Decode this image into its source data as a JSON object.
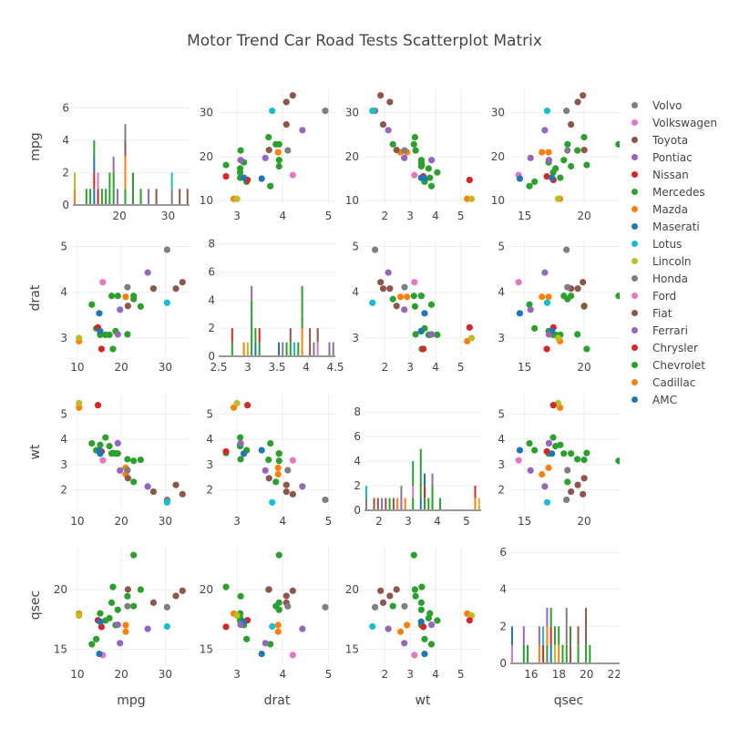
{
  "chart_data": {
    "type": "scatter",
    "title": "Motor Trend Car Road Tests Scatterplot Matrix",
    "variables": [
      "mpg",
      "drat",
      "wt",
      "qsec"
    ],
    "diagonal": "histogram (stacked by group)",
    "grid": true,
    "legend_placement": "right",
    "axes": {
      "mpg": {
        "range": [
          9,
          35.5
        ],
        "ticks": [
          10,
          20,
          30
        ],
        "tick_labels": [
          "10",
          "20",
          "30"
        ]
      },
      "drat": {
        "range": [
          2.6,
          5.15
        ],
        "ticks": [
          3,
          4,
          5
        ],
        "tick_labels": [
          "3",
          "4",
          "5"
        ]
      },
      "wt": {
        "range": [
          1.2,
          5.8
        ],
        "ticks": [
          2,
          3,
          4,
          5
        ],
        "tick_labels": [
          "2",
          "3",
          "4",
          "5"
        ]
      },
      "qsec": {
        "range": [
          13.8,
          23.6
        ],
        "ticks": [
          15,
          20
        ],
        "tick_labels": [
          "15",
          "20"
        ]
      }
    },
    "hist_axes": {
      "mpg": {
        "xrange": [
          10.4,
          34.4
        ],
        "xticks": [
          20,
          30
        ],
        "xtick_labels": [
          "20",
          "30"
        ],
        "yrange": [
          0,
          7.2
        ],
        "yticks": [
          0,
          2,
          4,
          6
        ],
        "ytick_labels": [
          "0",
          "2",
          "4",
          "6"
        ]
      },
      "drat": {
        "xrange": [
          2.5,
          4.5
        ],
        "xticks": [
          2.5,
          3,
          3.5,
          4,
          4.5
        ],
        "xtick_labels": [
          "2.5",
          "3",
          "3.5",
          "4",
          "4.5"
        ],
        "yrange": [
          0,
          8.3
        ],
        "yticks": [
          0,
          2,
          4,
          6,
          8
        ],
        "ytick_labels": [
          "0",
          "2",
          "4",
          "6",
          "8"
        ]
      },
      "wt": {
        "xrange": [
          1.5,
          5.5
        ],
        "xticks": [
          2,
          3,
          4,
          5
        ],
        "xtick_labels": [
          "2",
          "3",
          "4",
          "5"
        ],
        "yrange": [
          0,
          9.5
        ],
        "yticks": [
          0,
          2,
          4,
          6,
          8
        ],
        "ytick_labels": [
          "0",
          "2",
          "4",
          "6",
          "8"
        ]
      },
      "qsec": {
        "xrange": [
          14.5,
          22.9
        ],
        "xticks": [
          16,
          18,
          20,
          22
        ],
        "xtick_labels": [
          "16",
          "18",
          "20",
          "22"
        ],
        "yrange": [
          0,
          6.3
        ],
        "yticks": [
          0,
          2,
          4,
          6
        ],
        "ytick_labels": [
          "0",
          "2",
          "4",
          "6"
        ]
      }
    },
    "groups": [
      {
        "name": "AMC",
        "color": "#1f77b4"
      },
      {
        "name": "Cadillac",
        "color": "#ff7f0e"
      },
      {
        "name": "Chevrolet",
        "color": "#2ca02c"
      },
      {
        "name": "Chrysler",
        "color": "#d62728"
      },
      {
        "name": "Ferrari",
        "color": "#9467bd"
      },
      {
        "name": "Fiat",
        "color": "#8c564b"
      },
      {
        "name": "Ford",
        "color": "#e377c2"
      },
      {
        "name": "Honda",
        "color": "#7f7f7f"
      },
      {
        "name": "Lincoln",
        "color": "#bcbd22"
      },
      {
        "name": "Lotus",
        "color": "#17becf"
      },
      {
        "name": "Maserati",
        "color": "#1f77b4"
      },
      {
        "name": "Mazda",
        "color": "#ff7f0e"
      },
      {
        "name": "Mercedes",
        "color": "#2ca02c"
      },
      {
        "name": "Nissan",
        "color": "#d62728"
      },
      {
        "name": "Pontiac",
        "color": "#9467bd"
      },
      {
        "name": "Toyota",
        "color": "#8c564b"
      },
      {
        "name": "Volkswagen",
        "color": "#e377c2"
      },
      {
        "name": "Volvo",
        "color": "#7f7f7f"
      }
    ],
    "points": [
      {
        "g": "Mazda",
        "mpg": 21.0,
        "drat": 3.9,
        "wt": 2.62,
        "qsec": 16.46
      },
      {
        "g": "Mazda",
        "mpg": 21.0,
        "drat": 3.9,
        "wt": 2.875,
        "qsec": 17.02
      },
      {
        "g": "Chevrolet",
        "mpg": 22.8,
        "drat": 3.85,
        "wt": 2.32,
        "qsec": 18.61
      },
      {
        "g": "Chevrolet",
        "mpg": 21.4,
        "drat": 3.08,
        "wt": 3.215,
        "qsec": 19.44
      },
      {
        "g": "Chevrolet",
        "mpg": 18.7,
        "drat": 3.15,
        "wt": 3.44,
        "qsec": 17.02
      },
      {
        "g": "Chevrolet",
        "mpg": 18.1,
        "drat": 2.76,
        "wt": 3.46,
        "qsec": 20.22
      },
      {
        "g": "Chevrolet",
        "mpg": 14.3,
        "drat": 3.21,
        "wt": 3.57,
        "qsec": 15.84
      },
      {
        "g": "Mercedes",
        "mpg": 24.4,
        "drat": 3.69,
        "wt": 3.19,
        "qsec": 20.0
      },
      {
        "g": "Mercedes",
        "mpg": 22.8,
        "drat": 3.92,
        "wt": 3.15,
        "qsec": 22.9
      },
      {
        "g": "Mercedes",
        "mpg": 19.2,
        "drat": 3.92,
        "wt": 3.44,
        "qsec": 18.3
      },
      {
        "g": "Mercedes",
        "mpg": 17.8,
        "drat": 3.92,
        "wt": 3.44,
        "qsec": 18.9
      },
      {
        "g": "Mercedes",
        "mpg": 16.4,
        "drat": 3.07,
        "wt": 4.07,
        "qsec": 17.4
      },
      {
        "g": "Mercedes",
        "mpg": 17.3,
        "drat": 3.07,
        "wt": 3.73,
        "qsec": 17.6
      },
      {
        "g": "Mercedes",
        "mpg": 15.2,
        "drat": 3.07,
        "wt": 3.78,
        "qsec": 18.0
      },
      {
        "g": "Cadillac",
        "mpg": 10.4,
        "drat": 2.93,
        "wt": 5.25,
        "qsec": 17.98
      },
      {
        "g": "Lincoln",
        "mpg": 10.4,
        "drat": 3.0,
        "wt": 5.424,
        "qsec": 17.82
      },
      {
        "g": "Chrysler",
        "mpg": 14.7,
        "drat": 3.23,
        "wt": 5.345,
        "qsec": 17.42
      },
      {
        "g": "Fiat",
        "mpg": 32.4,
        "drat": 4.08,
        "wt": 2.2,
        "qsec": 19.47
      },
      {
        "g": "Honda",
        "mpg": 30.4,
        "drat": 4.93,
        "wt": 1.615,
        "qsec": 18.52
      },
      {
        "g": "Toyota",
        "mpg": 33.9,
        "drat": 4.22,
        "wt": 1.835,
        "qsec": 19.9
      },
      {
        "g": "Toyota",
        "mpg": 21.5,
        "drat": 3.7,
        "wt": 2.465,
        "qsec": 20.01
      },
      {
        "g": "Chrysler",
        "mpg": 15.5,
        "drat": 2.76,
        "wt": 3.52,
        "qsec": 16.87
      },
      {
        "g": "AMC",
        "mpg": 15.2,
        "drat": 3.15,
        "wt": 3.435,
        "qsec": 17.3
      },
      {
        "g": "Chevrolet",
        "mpg": 13.3,
        "drat": 3.73,
        "wt": 3.84,
        "qsec": 15.41
      },
      {
        "g": "Pontiac",
        "mpg": 19.2,
        "drat": 3.08,
        "wt": 3.845,
        "qsec": 17.05
      },
      {
        "g": "Fiat",
        "mpg": 27.3,
        "drat": 4.08,
        "wt": 1.935,
        "qsec": 18.9
      },
      {
        "g": "Pontiac",
        "mpg": 26.0,
        "drat": 4.43,
        "wt": 2.14,
        "qsec": 16.7
      },
      {
        "g": "Lotus",
        "mpg": 30.4,
        "drat": 3.77,
        "wt": 1.513,
        "qsec": 16.9
      },
      {
        "g": "Ford",
        "mpg": 15.8,
        "drat": 4.22,
        "wt": 3.17,
        "qsec": 14.5
      },
      {
        "g": "Ferrari",
        "mpg": 19.7,
        "drat": 3.62,
        "wt": 2.77,
        "qsec": 15.5
      },
      {
        "g": "Maserati",
        "mpg": 15.0,
        "drat": 3.54,
        "wt": 3.57,
        "qsec": 14.6
      },
      {
        "g": "Volvo",
        "mpg": 21.4,
        "drat": 4.11,
        "wt": 2.78,
        "qsec": 18.6
      }
    ]
  },
  "legend": {
    "items": [
      "Volvo",
      "Volkswagen",
      "Toyota",
      "Pontiac",
      "Nissan",
      "Mercedes",
      "Mazda",
      "Maserati",
      "Lotus",
      "Lincoln",
      "Honda",
      "Ford",
      "Fiat",
      "Ferrari",
      "Chrysler",
      "Chevrolet",
      "Cadillac",
      "AMC"
    ]
  }
}
